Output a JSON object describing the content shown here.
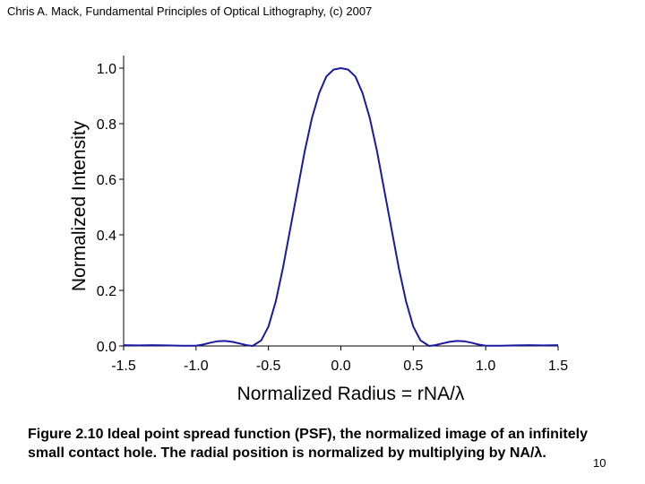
{
  "header": {
    "text": "Chris A. Mack, Fundamental Principles of Optical Lithography, (c) 2007"
  },
  "chart_data": {
    "type": "line",
    "title": "",
    "xlabel": "Normalized Radius = rNA/λ",
    "ylabel": "Normalized Intensity",
    "xlim": [
      -1.5,
      1.5
    ],
    "ylim": [
      0.0,
      1.0
    ],
    "x_ticks": [
      "-1.5",
      "-1.0",
      "-0.5",
      "0.0",
      "0.5",
      "1.0",
      "1.5"
    ],
    "y_ticks": [
      "0.0",
      "0.2",
      "0.4",
      "0.6",
      "0.8",
      "1.0"
    ],
    "grid": false,
    "series": [
      {
        "color": "#1a1aa0",
        "x": [
          -1.5,
          -1.4,
          -1.3,
          -1.2,
          -1.1,
          -1.0,
          -0.95,
          -0.9,
          -0.85,
          -0.8,
          -0.75,
          -0.7,
          -0.65,
          -0.61,
          -0.55,
          -0.5,
          -0.45,
          -0.4,
          -0.35,
          -0.3,
          -0.25,
          -0.2,
          -0.15,
          -0.1,
          -0.05,
          0.0,
          0.05,
          0.1,
          0.15,
          0.2,
          0.25,
          0.3,
          0.35,
          0.4,
          0.45,
          0.5,
          0.55,
          0.61,
          0.65,
          0.7,
          0.75,
          0.8,
          0.85,
          0.9,
          0.95,
          1.0,
          1.1,
          1.2,
          1.3,
          1.4,
          1.5
        ],
        "y": [
          0.003,
          0.002,
          0.003,
          0.002,
          0.001,
          0.001,
          0.005,
          0.012,
          0.017,
          0.018,
          0.015,
          0.009,
          0.003,
          0.0,
          0.02,
          0.07,
          0.16,
          0.28,
          0.42,
          0.56,
          0.7,
          0.82,
          0.91,
          0.97,
          0.995,
          1.0,
          0.995,
          0.97,
          0.91,
          0.82,
          0.7,
          0.56,
          0.42,
          0.28,
          0.16,
          0.07,
          0.02,
          0.0,
          0.003,
          0.009,
          0.015,
          0.018,
          0.017,
          0.012,
          0.005,
          0.001,
          0.001,
          0.002,
          0.003,
          0.002,
          0.003
        ]
      }
    ]
  },
  "caption": {
    "line1": "Figure 2.10 Ideal point spread function (PSF), the normalized image of an infinitely",
    "line2": "small contact hole. The radial position is normalized by multiplying by NA/λ."
  },
  "page_number": "10"
}
